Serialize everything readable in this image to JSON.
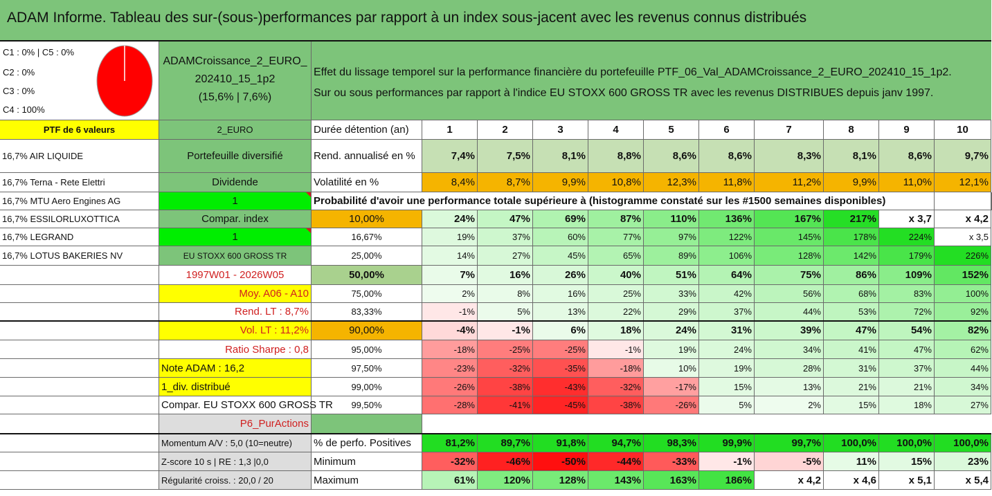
{
  "title": "ADAM Informe. Tableau des sur-(sous-)performances par rapport à un index sous-jacent avec les revenus connus distribués",
  "pie": {
    "legend": [
      "C1 : 0% | C5 : 0%",
      "C2 : 0%",
      "C3 : 0%",
      "C4 : 100%"
    ],
    "values": {
      "C1": 0,
      "C2": 0,
      "C3": 0,
      "C4": 100,
      "C5": 0
    }
  },
  "fund": {
    "line1": "ADAMCroissance_2_EURO_",
    "line2": "202410_15_1p2",
    "line3": "(15,6% | 7,6%)"
  },
  "desc": {
    "line1": "Effet du lissage temporel sur la performance financière du portefeuille PTF_06_Val_ADAMCroissance_2_EURO_202410_15_1p2.",
    "line2": "Sur ou sous performances par rapport à l'indice EU STOXX 600 GROSS TR avec les revenus DISTRIBUES depuis janv 1997."
  },
  "portfolio": {
    "header": "PTF de 6 valeurs",
    "holdings": [
      "16,7% AIR LIQUIDE",
      "16,7% Terna - Rete Elettri",
      "16,7% MTU Aero Engines AG",
      "16,7% ESSILORLUXOTTICA",
      "16,7% LEGRAND",
      "16,7% LOTUS BAKERIES NV"
    ]
  },
  "info": {
    "currency": "2_EURO",
    "type": "Portefeuille diversifié",
    "dividend": "Dividende",
    "dividend_val": "1",
    "compar_index": "Compar. index",
    "compar_val": "1",
    "index_name": "EU STOXX 600 GROSS TR",
    "period": "1997W01 - 2026W05",
    "moy": "Moy. A06 - A10",
    "rend": "Rend. LT : 8,7%",
    "vol": "Vol. LT : 11,2%",
    "sharpe": "Ratio Sharpe : 0,8",
    "note": "Note ADAM : 16,2",
    "div_distrib": "1_div. distribué",
    "compar_full": "Compar. EU STOXX 600 GROSS TR",
    "p6": "P6_PurActions",
    "momentum": "Momentum A/V : 5,0 (10=neutre)",
    "zscore": "Z-score 10 s | RE : 1,3 |0,0",
    "regularite": "Régularité croiss. : 20,0 / 20"
  },
  "table": {
    "duree_label": "Durée détention (an)",
    "years": [
      "1",
      "2",
      "3",
      "4",
      "5",
      "6",
      "7",
      "8",
      "9",
      "10"
    ],
    "rend_label": "Rend. annualisé en %",
    "rend": [
      "7,4%",
      "7,5%",
      "8,1%",
      "8,8%",
      "8,6%",
      "8,6%",
      "8,3%",
      "8,1%",
      "8,6%",
      "9,7%"
    ],
    "vol_label": "Volatilité en %",
    "vol": [
      "8,4%",
      "8,7%",
      "9,9%",
      "10,8%",
      "12,3%",
      "11,8%",
      "11,2%",
      "9,9%",
      "11,0%",
      "12,1%"
    ],
    "proba_title": "Probabilité d'avoir une performance totale supérieure à (histogramme constaté sur les #1500 semaines disponibles)",
    "prob_rows": [
      {
        "p": "10,00%",
        "v": [
          "24%",
          "47%",
          "69%",
          "87%",
          "110%",
          "136%",
          "167%",
          "217%",
          "x 3,7",
          "x 4,2"
        ]
      },
      {
        "p": "16,67%",
        "v": [
          "19%",
          "37%",
          "60%",
          "77%",
          "97%",
          "122%",
          "145%",
          "178%",
          "224%",
          "x 3,5"
        ]
      },
      {
        "p": "25,00%",
        "v": [
          "14%",
          "27%",
          "45%",
          "65%",
          "89%",
          "106%",
          "128%",
          "142%",
          "179%",
          "226%"
        ]
      },
      {
        "p": "50,00%",
        "v": [
          "7%",
          "16%",
          "26%",
          "40%",
          "51%",
          "64%",
          "75%",
          "86%",
          "109%",
          "152%"
        ]
      },
      {
        "p": "75,00%",
        "v": [
          "2%",
          "8%",
          "16%",
          "25%",
          "33%",
          "42%",
          "56%",
          "68%",
          "83%",
          "100%"
        ]
      },
      {
        "p": "83,33%",
        "v": [
          "-1%",
          "5%",
          "13%",
          "22%",
          "29%",
          "37%",
          "44%",
          "53%",
          "72%",
          "92%"
        ]
      },
      {
        "p": "90,00%",
        "v": [
          "-4%",
          "-1%",
          "6%",
          "18%",
          "24%",
          "31%",
          "39%",
          "47%",
          "54%",
          "82%"
        ]
      },
      {
        "p": "95,00%",
        "v": [
          "-18%",
          "-25%",
          "-25%",
          "-1%",
          "19%",
          "24%",
          "34%",
          "41%",
          "47%",
          "62%"
        ]
      },
      {
        "p": "97,50%",
        "v": [
          "-23%",
          "-32%",
          "-35%",
          "-18%",
          "10%",
          "19%",
          "28%",
          "31%",
          "37%",
          "44%"
        ]
      },
      {
        "p": "99,00%",
        "v": [
          "-26%",
          "-38%",
          "-43%",
          "-32%",
          "-17%",
          "15%",
          "13%",
          "21%",
          "21%",
          "34%"
        ]
      },
      {
        "p": "99,50%",
        "v": [
          "-28%",
          "-41%",
          "-45%",
          "-38%",
          "-26%",
          "5%",
          "2%",
          "15%",
          "18%",
          "27%"
        ]
      }
    ],
    "pos_label": "% de perfo. Positives",
    "pos": [
      "81,2%",
      "89,7%",
      "91,8%",
      "94,7%",
      "98,3%",
      "99,9%",
      "99,7%",
      "100,0%",
      "100,0%",
      "100,0%"
    ],
    "min_label": "Minimum",
    "min": [
      "-32%",
      "-46%",
      "-50%",
      "-44%",
      "-33%",
      "-1%",
      "-5%",
      "11%",
      "15%",
      "23%"
    ],
    "max_label": "Maximum",
    "max": [
      "61%",
      "120%",
      "128%",
      "143%",
      "163%",
      "186%",
      "x 4,2",
      "x 4,6",
      "x 5,1",
      "x 5,4"
    ]
  },
  "colors": {
    "green": "#7dc47a",
    "yellow": "#ffff00",
    "orange": "#f5b400",
    "bright_green": "#22dd22",
    "red_text": "#d02020"
  }
}
